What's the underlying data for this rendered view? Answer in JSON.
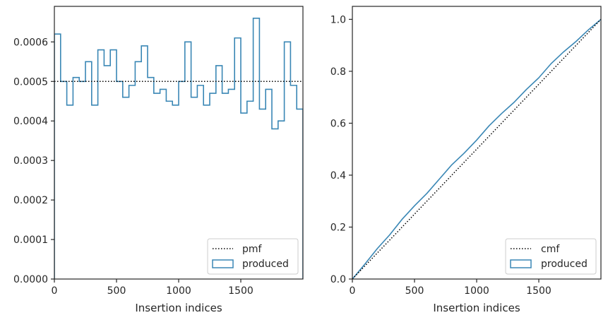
{
  "colors": {
    "histogram": "#3a87b5",
    "reference": "#000000",
    "axes": "#262626",
    "legend_border": "#cccccc"
  },
  "chart_data": [
    {
      "type": "histogram",
      "xlabel": "Insertion indices",
      "ylabel": "",
      "xlim": [
        0,
        2000
      ],
      "ylim": [
        0,
        0.00069
      ],
      "xticks": [
        0,
        500,
        1000,
        1500
      ],
      "xtick_labels": [
        "0",
        "500",
        "1000",
        "1500"
      ],
      "yticks": [
        0,
        0.0001,
        0.0002,
        0.0003,
        0.0004,
        0.0005,
        0.0006
      ],
      "ytick_labels": [
        "0.0000",
        "0.0001",
        "0.0002",
        "0.0003",
        "0.0004",
        "0.0005",
        "0.0006"
      ],
      "grid": false,
      "legend_position": "lower right",
      "bin_edges": [
        0,
        50,
        100,
        150,
        200,
        250,
        300,
        350,
        400,
        450,
        500,
        550,
        600,
        650,
        700,
        750,
        800,
        850,
        900,
        950,
        1000,
        1050,
        1100,
        1150,
        1200,
        1250,
        1300,
        1350,
        1400,
        1450,
        1500,
        1550,
        1600,
        1650,
        1700,
        1750,
        1800,
        1850,
        1900,
        1950,
        2000
      ],
      "series": [
        {
          "name": "produced",
          "style": "step",
          "values": [
            0.00062,
            0.0005,
            0.00044,
            0.00051,
            0.0005,
            0.00055,
            0.00044,
            0.00058,
            0.00054,
            0.00058,
            0.0005,
            0.00046,
            0.00049,
            0.00055,
            0.00059,
            0.00051,
            0.00047,
            0.00048,
            0.00045,
            0.00044,
            0.0005,
            0.0006,
            0.00046,
            0.00049,
            0.00044,
            0.00047,
            0.00054,
            0.00047,
            0.00048,
            0.00061,
            0.00042,
            0.00045,
            0.00066,
            0.00043,
            0.00048,
            0.00038,
            0.0004,
            0.0006,
            0.00049,
            0.00043
          ]
        },
        {
          "name": "pmf",
          "style": "dotted",
          "x": [
            0,
            2000
          ],
          "values": [
            0.0005,
            0.0005
          ]
        }
      ]
    },
    {
      "type": "line",
      "xlabel": "Insertion indices",
      "ylabel": "",
      "xlim": [
        0,
        2000
      ],
      "ylim": [
        0,
        1.05
      ],
      "xticks": [
        0,
        500,
        1000,
        1500
      ],
      "xtick_labels": [
        "0",
        "500",
        "1000",
        "1500"
      ],
      "yticks": [
        0,
        0.2,
        0.4,
        0.6,
        0.8,
        1.0
      ],
      "ytick_labels": [
        "0.0",
        "0.2",
        "0.4",
        "0.6",
        "0.8",
        "1.0"
      ],
      "grid": false,
      "legend_position": "lower right",
      "series": [
        {
          "name": "produced",
          "style": "solid",
          "x": [
            0,
            100,
            200,
            300,
            400,
            500,
            600,
            700,
            800,
            900,
            1000,
            1100,
            1200,
            1300,
            1400,
            1500,
            1600,
            1700,
            1800,
            1900,
            2000
          ],
          "values": [
            0.0,
            0.057,
            0.117,
            0.17,
            0.23,
            0.282,
            0.33,
            0.385,
            0.44,
            0.485,
            0.535,
            0.59,
            0.637,
            0.68,
            0.73,
            0.775,
            0.83,
            0.875,
            0.915,
            0.96,
            1.0
          ]
        },
        {
          "name": "cmf",
          "style": "dotted",
          "x": [
            0,
            2000
          ],
          "values": [
            0.0,
            1.0
          ]
        }
      ]
    }
  ]
}
